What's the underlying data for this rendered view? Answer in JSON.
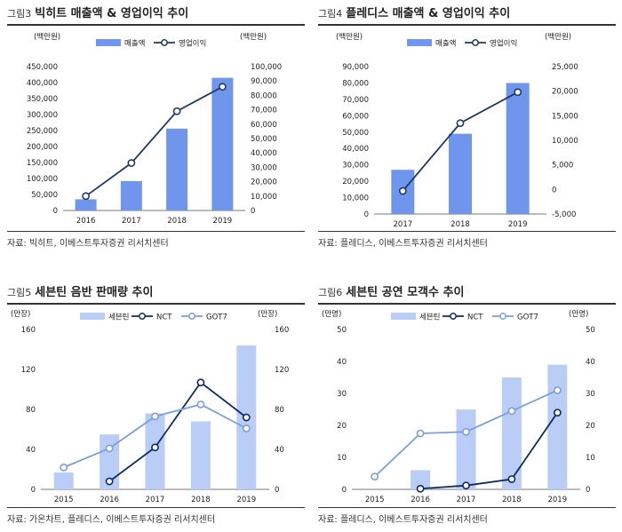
{
  "charts": [
    {
      "num": "그림3",
      "title": "빅히트 매출액 & 영업이익 추이",
      "source": "자료: 빅히트, 이베스트투자증권 리서치센터",
      "left_unit": "(백만원)",
      "right_unit": "(백만원)",
      "legend": [
        "매출액",
        "영업이익"
      ],
      "colors": {
        "bar": "#6f96ec",
        "line": "#1f3868"
      }
    },
    {
      "num": "그림4",
      "title": "플레디스 매출액 & 영업이익 추이",
      "source": "자료: 플레디스, 이베스트투자증권 리서치센터",
      "left_unit": "(백만원)",
      "right_unit": "(백만원)",
      "legend": [
        "매출액",
        "영업이익"
      ],
      "colors": {
        "bar": "#6f96ec",
        "line": "#1f3868"
      }
    },
    {
      "num": "그림5",
      "title": "세븐틴 음반 판매량 추이",
      "source": "자료: 가온차트, 플레디스, 이베스트투자증권 리서치센터",
      "left_unit": "(만장)",
      "right_unit": "(만장)",
      "legend": [
        "세븐틴",
        "NCT",
        "GOT7"
      ],
      "colors": {
        "bar": "#b9cdf6",
        "line1": "#0e2a63",
        "line2": "#7c9fd8"
      }
    },
    {
      "num": "그림6",
      "title": "세븐틴 공연 모객수 추이",
      "source": "자료: 플레디스, 이베스트투자증권 리서치센터",
      "left_unit": "(만명)",
      "right_unit": "(만명)",
      "legend": [
        "세븐틴",
        "NCT",
        "GOT7"
      ],
      "colors": {
        "bar": "#b9cdf6",
        "line1": "#0e2a63",
        "line2": "#7c9fd8"
      }
    }
  ],
  "chart_data": [
    {
      "type": "bar",
      "title": "빅히트 매출액 & 영업이익 추이",
      "categories": [
        "2016",
        "2017",
        "2018",
        "2019"
      ],
      "left_axis": {
        "min": 0,
        "max": 450000,
        "ticks": [
          "0",
          "50,000",
          "100,000",
          "150,000",
          "200,000",
          "250,000",
          "300,000",
          "350,000",
          "400,000",
          "450,000"
        ]
      },
      "right_axis": {
        "min": 0,
        "max": 100000,
        "ticks": [
          "0",
          "10,000",
          "20,000",
          "30,000",
          "40,000",
          "50,000",
          "60,000",
          "70,000",
          "80,000",
          "90,000",
          "100,000"
        ]
      },
      "series": [
        {
          "name": "매출액",
          "kind": "bar",
          "axis": "left",
          "values": [
            35000,
            92000,
            256000,
            415000
          ]
        },
        {
          "name": "영업이익",
          "kind": "line",
          "axis": "right",
          "marker": "hollow",
          "values": [
            10000,
            33000,
            69000,
            86000
          ]
        }
      ]
    },
    {
      "type": "bar",
      "title": "플레디스 매출액 & 영업이익 추이",
      "categories": [
        "2017",
        "2018",
        "2019"
      ],
      "left_axis": {
        "min": 0,
        "max": 90000,
        "ticks": [
          "0",
          "10,000",
          "20,000",
          "30,000",
          "40,000",
          "50,000",
          "60,000",
          "70,000",
          "80,000",
          "90,000"
        ]
      },
      "right_axis": {
        "min": -5000,
        "max": 25000,
        "ticks": [
          "-5,000",
          "0",
          "5,000",
          "10,000",
          "15,000",
          "20,000",
          "25,000"
        ]
      },
      "series": [
        {
          "name": "매출액",
          "kind": "bar",
          "axis": "left",
          "values": [
            27000,
            49000,
            80000
          ]
        },
        {
          "name": "영업이익",
          "kind": "line",
          "axis": "right",
          "marker": "hollow",
          "values": [
            -300,
            13500,
            19800
          ]
        }
      ]
    },
    {
      "type": "bar",
      "title": "세븐틴 음반 판매량 추이",
      "categories": [
        "2015",
        "2016",
        "2017",
        "2018",
        "2019"
      ],
      "left_axis": {
        "min": 0,
        "max": 160,
        "ticks": [
          "0",
          "40",
          "80",
          "120",
          "160"
        ]
      },
      "right_axis": {
        "min": 0,
        "max": 160,
        "ticks": [
          "0",
          "40",
          "80",
          "120",
          "160"
        ]
      },
      "series": [
        {
          "name": "세븐틴",
          "kind": "bar",
          "axis": "left",
          "values": [
            17,
            55,
            76,
            68,
            144
          ]
        },
        {
          "name": "NCT",
          "kind": "line",
          "axis": "left",
          "marker": "hollow",
          "values": [
            null,
            8,
            42,
            107,
            72
          ]
        },
        {
          "name": "GOT7",
          "kind": "line",
          "axis": "left",
          "marker": "hollow",
          "values": [
            22,
            41,
            73,
            85,
            61
          ]
        }
      ]
    },
    {
      "type": "bar",
      "title": "세븐틴 공연 모객수 추이",
      "categories": [
        "2015",
        "2016",
        "2017",
        "2018",
        "2019"
      ],
      "left_axis": {
        "min": 0,
        "max": 50,
        "ticks": [
          "0",
          "10",
          "20",
          "30",
          "40",
          "50"
        ]
      },
      "right_axis": {
        "min": 0,
        "max": 50,
        "ticks": [
          "0",
          "10",
          "20",
          "30",
          "40",
          "50"
        ]
      },
      "series": [
        {
          "name": "세븐틴",
          "kind": "bar",
          "axis": "left",
          "values": [
            null,
            6,
            25,
            35,
            39
          ]
        },
        {
          "name": "NCT",
          "kind": "line",
          "axis": "left",
          "marker": "hollow",
          "values": [
            null,
            0.2,
            1.2,
            3.2,
            24
          ]
        },
        {
          "name": "GOT7",
          "kind": "line",
          "axis": "left",
          "marker": "hollow",
          "values": [
            4,
            17.5,
            18,
            24.5,
            31
          ]
        }
      ]
    }
  ]
}
